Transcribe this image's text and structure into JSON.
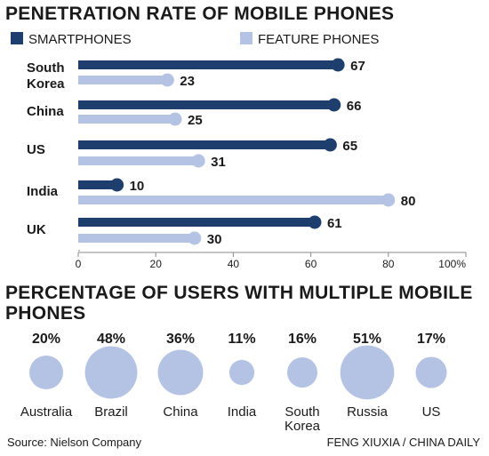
{
  "colors": {
    "smartphones": "#1e3f6e",
    "feature_phones": "#b4c2e4",
    "bubble": "#b4c2e4",
    "text": "#1a1a1a"
  },
  "chart_data": [
    {
      "type": "bar",
      "orientation": "horizontal",
      "title": "PENETRATION RATE OF MOBILE PHONES",
      "categories": [
        {
          "lines": [
            "South",
            "Korea"
          ]
        },
        {
          "lines": [
            "China"
          ]
        },
        {
          "lines": [
            "US"
          ]
        },
        {
          "lines": [
            "India"
          ]
        },
        {
          "lines": [
            "UK"
          ]
        }
      ],
      "series": [
        {
          "name": "SMARTPHONES",
          "values": [
            67,
            66,
            65,
            10,
            61
          ]
        },
        {
          "name": "FEATURE PHONES",
          "values": [
            23,
            25,
            31,
            80,
            30
          ]
        }
      ],
      "xlim": [
        0,
        100
      ],
      "xticks": [
        "0",
        "20",
        "40",
        "60",
        "80",
        "100%"
      ],
      "legend_position": "top"
    },
    {
      "type": "bubble",
      "title": "PERCENTAGE OF USERS WITH MULTIPLE MOBILE PHONES",
      "items": [
        {
          "lines": [
            "Australia"
          ],
          "value": 20,
          "label": "20%"
        },
        {
          "lines": [
            "Brazil"
          ],
          "value": 48,
          "label": "48%"
        },
        {
          "lines": [
            "China"
          ],
          "value": 36,
          "label": "36%"
        },
        {
          "lines": [
            "India"
          ],
          "value": 11,
          "label": "11%"
        },
        {
          "lines": [
            "South",
            "Korea"
          ],
          "value": 16,
          "label": "16%"
        },
        {
          "lines": [
            "Russia"
          ],
          "value": 51,
          "label": "51%"
        },
        {
          "lines": [
            "US"
          ],
          "value": 17,
          "label": "17%"
        }
      ]
    }
  ],
  "footer": {
    "source": "Source: Nielson Company",
    "credit": "FENG XIUXIA / CHINA DAILY"
  }
}
